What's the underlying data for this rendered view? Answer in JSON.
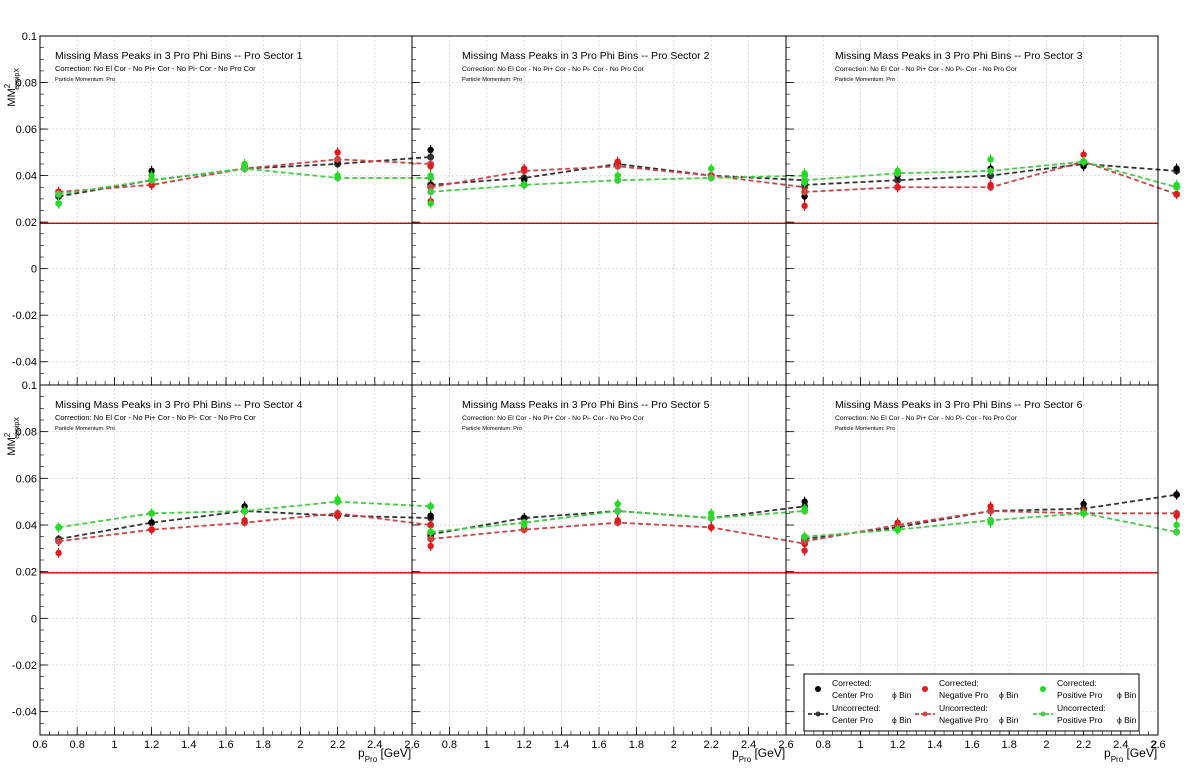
{
  "colors": {
    "center": "#000000",
    "negative": "#e31a1c",
    "positive": "#22dd22",
    "center_line": "#333333",
    "negative_line": "#cc4444",
    "positive_line": "#44cc44",
    "reference_line": "#cc0000",
    "grid": "#c8c8c8"
  },
  "chart_data": {
    "type": "scatter",
    "title_template": "Missing Mass Peaks in 3 Pro Phi Bins -- Pro Sector",
    "correction_text": "Correction: No El Cor - No Pi+ Cor - No Pi- Cor - No Pro Cor",
    "momentum_text": "Particle Momentum: Pro",
    "ylabel": "MM",
    "ylabel_sup": "2",
    "ylabel_sub": "eppipX",
    "xlabel": "p",
    "xlabel_sub": "Pro",
    "xlabel_unit": " [GeV]",
    "reference_line_y": 0.0195,
    "x": [
      0.7,
      1.2,
      1.7,
      2.2,
      2.7
    ],
    "top_left_xlim": [
      0.6,
      2.6
    ],
    "other_xlim": [
      0.6,
      2.6
    ],
    "top_ylim": [
      -0.05,
      0.1
    ],
    "bottom_ylim": [
      -0.05,
      0.1
    ],
    "y_ticks_main": [
      "0.08",
      "0.06",
      "0.04",
      "0.02",
      "0",
      "-0.02",
      "-0.04"
    ],
    "y_tick_top_clip": "0.1",
    "x_ticks_labels": [
      "0.6",
      "0.8",
      "1",
      "1.2",
      "1.4",
      "1.6",
      "1.8",
      "2",
      "2.2",
      "2.4",
      "2.6"
    ],
    "x_ticks_labels_last": [
      "0.8",
      "1",
      "1.2",
      "1.4",
      "1.6",
      "1.8",
      "2",
      "2.2",
      "2.4",
      "2.6",
      "2"
    ],
    "panels": [
      {
        "sector": "1",
        "corrected": {
          "center": [
            0.028,
            0.042,
            0.044,
            0.046,
            0.051
          ],
          "negative": [
            0.033,
            0.036,
            0.044,
            0.05,
            0.044
          ],
          "positive": [
            0.028,
            0.04,
            0.045,
            0.04,
            0.04
          ]
        },
        "uncorrected": {
          "center": [
            0.031,
            0.038,
            0.043,
            0.045,
            0.048
          ],
          "negative": [
            0.033,
            0.036,
            0.043,
            0.047,
            0.045
          ],
          "positive": [
            0.032,
            0.038,
            0.043,
            0.039,
            0.039
          ]
        }
      },
      {
        "sector": "2",
        "corrected": {
          "center": [
            0.036,
            0.038,
            0.045,
            0.04,
            0.037
          ],
          "negative": [
            0.029,
            0.043,
            0.046,
            0.04,
            0.035
          ],
          "positive": [
            0.028,
            0.036,
            0.04,
            0.043,
            0.041
          ]
        },
        "uncorrected": {
          "center": [
            0.036,
            0.039,
            0.045,
            0.04,
            0.038
          ],
          "negative": [
            0.035,
            0.042,
            0.044,
            0.04,
            0.035
          ],
          "positive": [
            0.033,
            0.036,
            0.038,
            0.039,
            0.04
          ]
        }
      },
      {
        "sector": "3",
        "corrected": {
          "center": [
            0.031,
            0.04,
            0.043,
            0.044,
            0.043
          ],
          "negative": [
            0.027,
            0.035,
            0.036,
            0.049,
            0.032
          ],
          "positive": [
            0.037,
            0.042,
            0.047,
            0.046,
            0.036
          ]
        },
        "uncorrected": {
          "center": [
            0.036,
            0.038,
            0.04,
            0.045,
            0.042
          ],
          "negative": [
            0.033,
            0.035,
            0.035,
            0.046,
            0.032
          ],
          "positive": [
            0.038,
            0.041,
            0.042,
            0.046,
            0.035
          ]
        }
      },
      {
        "sector": "4",
        "corrected": {
          "center": [
            0.033,
            0.041,
            0.048,
            0.044,
            0.044
          ],
          "negative": [
            0.028,
            0.038,
            0.042,
            0.044,
            0.04
          ],
          "positive": [
            0.039,
            0.045,
            0.046,
            0.051,
            0.048
          ]
        },
        "uncorrected": {
          "center": [
            0.034,
            0.041,
            0.046,
            0.044,
            0.043
          ],
          "negative": [
            0.033,
            0.038,
            0.041,
            0.045,
            0.04
          ],
          "positive": [
            0.039,
            0.045,
            0.046,
            0.05,
            0.048
          ]
        }
      },
      {
        "sector": "5",
        "corrected": {
          "center": [
            0.035,
            0.043,
            0.046,
            0.043,
            0.05
          ],
          "negative": [
            0.031,
            0.039,
            0.042,
            0.039,
            0.032
          ],
          "positive": [
            0.037,
            0.04,
            0.049,
            0.045,
            0.047
          ]
        },
        "uncorrected": {
          "center": [
            0.036,
            0.043,
            0.046,
            0.043,
            0.048
          ],
          "negative": [
            0.034,
            0.038,
            0.041,
            0.039,
            0.032
          ],
          "positive": [
            0.037,
            0.041,
            0.046,
            0.043,
            0.046
          ]
        }
      },
      {
        "sector": "6",
        "corrected": {
          "center": [
            0.033,
            0.039,
            0.046,
            0.049,
            0.053
          ],
          "negative": [
            0.029,
            0.041,
            0.048,
            0.046,
            0.044
          ],
          "positive": [
            0.035,
            0.038,
            0.041,
            0.045,
            0.04
          ]
        },
        "uncorrected": {
          "center": [
            0.034,
            0.039,
            0.046,
            0.047,
            0.053
          ],
          "negative": [
            0.033,
            0.04,
            0.046,
            0.045,
            0.045
          ],
          "positive": [
            0.035,
            0.038,
            0.042,
            0.045,
            0.037
          ]
        }
      }
    ],
    "legend": {
      "entries": [
        {
          "key": "corr_center",
          "line1": "Corrected:",
          "line2": "Center Pro",
          "phi": "ϕ Bin"
        },
        {
          "key": "corr_negative",
          "line1": "Corrected:",
          "line2": "Negative Pro",
          "phi": "ϕ Bin"
        },
        {
          "key": "corr_positive",
          "line1": "Corrected:",
          "line2": "Positive Pro",
          "phi": "ϕ Bin"
        },
        {
          "key": "unc_center",
          "line1": "Uncorrected:",
          "line2": "Center Pro",
          "phi": "ϕ Bin"
        },
        {
          "key": "unc_negative",
          "line1": "Uncorrected:",
          "line2": "Negative Pro",
          "phi": "ϕ Bin"
        },
        {
          "key": "unc_positive",
          "line1": "Uncorrected:",
          "line2": "Positive Pro",
          "phi": "ϕ Bin"
        }
      ]
    }
  }
}
